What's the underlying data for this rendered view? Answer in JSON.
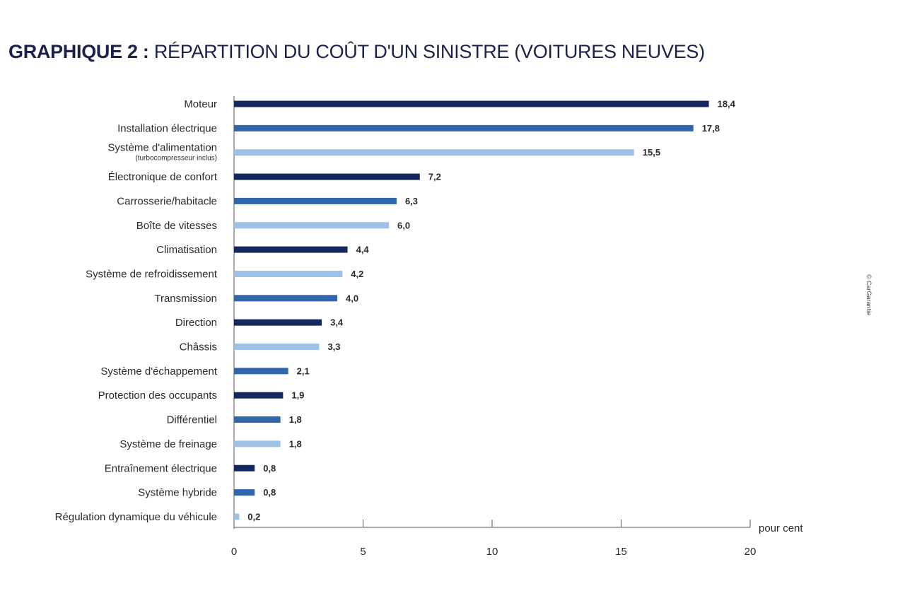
{
  "title": {
    "bold": "GRAPHIQUE 2 :",
    "light": "RÉPARTITION DU COÛT D'UN SINISTRE (VOITURES NEUVES)"
  },
  "credit": "© CarGarantie",
  "colors": {
    "dark": "#14275f",
    "medium": "#2f66ae",
    "light": "#9ec1e8"
  },
  "chart_data": {
    "type": "bar",
    "orientation": "horizontal",
    "title": "GRAPHIQUE 2 : RÉPARTITION DU COÛT D'UN SINISTRE (VOITURES NEUVES)",
    "xlabel": "pour cent",
    "xlim": [
      0,
      20
    ],
    "xticks": [
      0,
      5,
      10,
      15,
      20
    ],
    "grid": false,
    "categories": [
      {
        "label": "Moteur",
        "sub": "",
        "value": 18.4,
        "display": "18,4",
        "shade": "dark"
      },
      {
        "label": "Installation électrique",
        "sub": "",
        "value": 17.8,
        "display": "17,8",
        "shade": "medium"
      },
      {
        "label": "Système d'alimentation",
        "sub": "(turbocompresseur inclus)",
        "value": 15.5,
        "display": "15,5",
        "shade": "light"
      },
      {
        "label": "Électronique de confort",
        "sub": "",
        "value": 7.2,
        "display": "7,2",
        "shade": "dark"
      },
      {
        "label": "Carrosserie/habitacle",
        "sub": "",
        "value": 6.3,
        "display": "6,3",
        "shade": "medium"
      },
      {
        "label": "Boîte de vitesses",
        "sub": "",
        "value": 6.0,
        "display": "6,0",
        "shade": "light"
      },
      {
        "label": "Climatisation",
        "sub": "",
        "value": 4.4,
        "display": "4,4",
        "shade": "dark"
      },
      {
        "label": "Système de refroidissement",
        "sub": "",
        "value": 4.2,
        "display": "4,2",
        "shade": "light"
      },
      {
        "label": "Transmission",
        "sub": "",
        "value": 4.0,
        "display": "4,0",
        "shade": "medium"
      },
      {
        "label": "Direction",
        "sub": "",
        "value": 3.4,
        "display": "3,4",
        "shade": "dark"
      },
      {
        "label": "Châssis",
        "sub": "",
        "value": 3.3,
        "display": "3,3",
        "shade": "light"
      },
      {
        "label": "Système d'échappement",
        "sub": "",
        "value": 2.1,
        "display": "2,1",
        "shade": "medium"
      },
      {
        "label": "Protection des occupants",
        "sub": "",
        "value": 1.9,
        "display": "1,9",
        "shade": "dark"
      },
      {
        "label": "Différentiel",
        "sub": "",
        "value": 1.8,
        "display": "1,8",
        "shade": "medium"
      },
      {
        "label": "Système de freinage",
        "sub": "",
        "value": 1.8,
        "display": "1,8",
        "shade": "light"
      },
      {
        "label": "Entraînement électrique",
        "sub": "",
        "value": 0.8,
        "display": "0,8",
        "shade": "dark"
      },
      {
        "label": "Système hybride",
        "sub": "",
        "value": 0.8,
        "display": "0,8",
        "shade": "medium"
      },
      {
        "label": "Régulation dynamique du véhicule",
        "sub": "",
        "value": 0.2,
        "display": "0,2",
        "shade": "light"
      }
    ]
  }
}
